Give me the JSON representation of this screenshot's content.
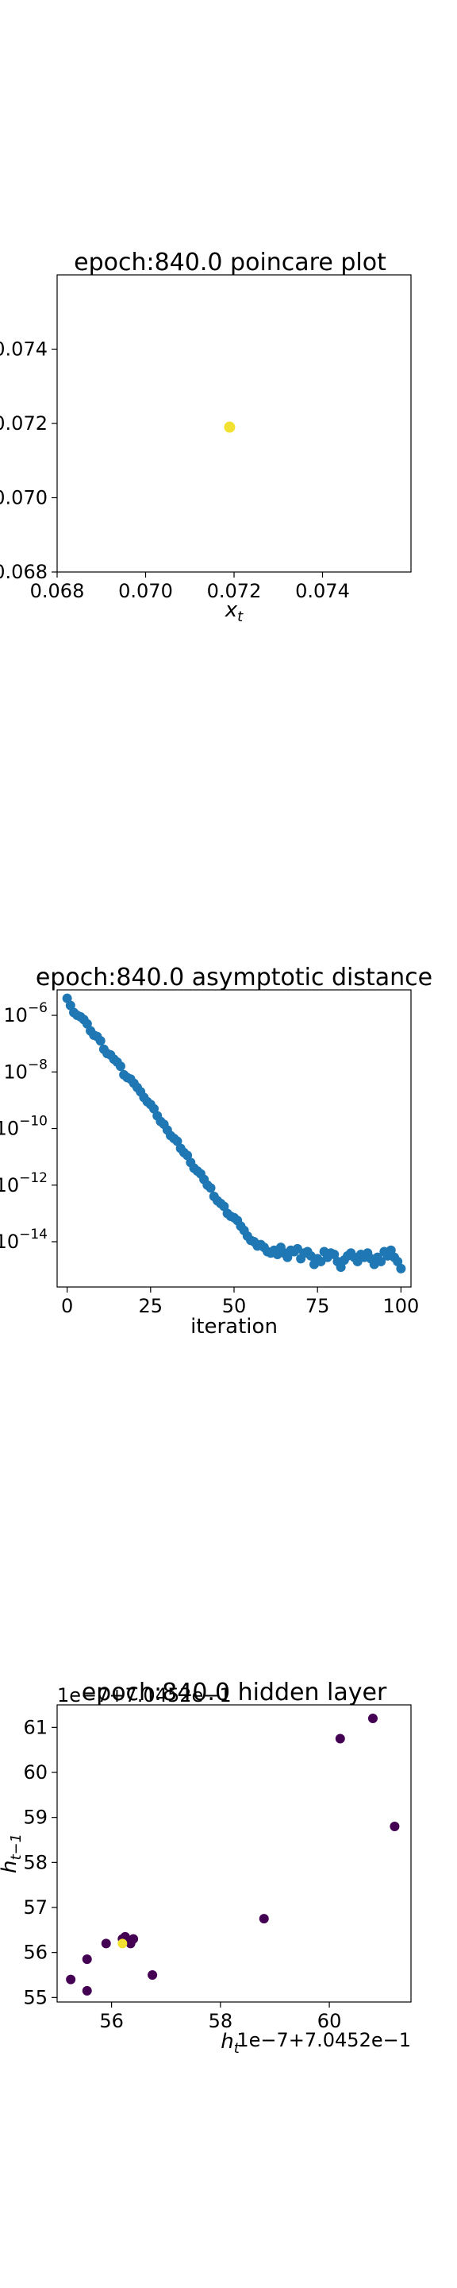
{
  "chart_data": [
    {
      "type": "scatter",
      "title": "epoch:840.0 poincare plot",
      "xlabel": "x_t",
      "ylabel": "",
      "xlim": [
        0.068,
        0.076
      ],
      "ylim": [
        0.068,
        0.076
      ],
      "xticks": [
        "0.068",
        "0.070",
        "0.072",
        "0.074"
      ],
      "yticks": [
        "0.068",
        "0.070",
        "0.072",
        "0.074"
      ],
      "tick_values": [
        0.068,
        0.07,
        0.072,
        0.074
      ],
      "points": [
        {
          "x": 0.0719,
          "y": 0.0719,
          "color": "#f2e130"
        }
      ]
    },
    {
      "type": "scatter",
      "title": "epoch:840.0 asymptotic distance",
      "xlabel": "iteration",
      "ylabel": "",
      "yscale": "log",
      "xlim": [
        -3,
        103
      ],
      "ylim_log10": [
        -15.6,
        -5.1
      ],
      "xticks": [
        "0",
        "25",
        "50",
        "75",
        "100"
      ],
      "xtick_values": [
        0,
        25,
        50,
        75,
        100
      ],
      "yticks": [
        {
          "base": "10",
          "exp": "−6",
          "log": -6
        },
        {
          "base": "10",
          "exp": "−8",
          "log": -8
        },
        {
          "base": "10",
          "exp": "−10",
          "log": -10
        },
        {
          "base": "10",
          "exp": "−12",
          "log": -12
        },
        {
          "base": "10",
          "exp": "−14",
          "log": -14
        }
      ],
      "color": "#1f77b4",
      "y_log10": [
        -5.4,
        -5.65,
        -5.9,
        -6.0,
        -6.05,
        -6.15,
        -6.3,
        -6.55,
        -6.7,
        -6.75,
        -6.9,
        -7.2,
        -7.35,
        -7.4,
        -7.55,
        -7.65,
        -7.8,
        -8.1,
        -8.2,
        -8.25,
        -8.4,
        -8.55,
        -8.7,
        -8.9,
        -9.05,
        -9.15,
        -9.3,
        -9.55,
        -9.75,
        -9.85,
        -10.05,
        -10.25,
        -10.35,
        -10.45,
        -10.7,
        -10.85,
        -10.95,
        -11.2,
        -11.4,
        -11.5,
        -11.6,
        -11.8,
        -12.0,
        -12.1,
        -12.4,
        -12.55,
        -12.65,
        -12.75,
        -13.0,
        -13.1,
        -13.15,
        -13.25,
        -13.45,
        -13.6,
        -13.8,
        -13.95,
        -14.0,
        -14.15,
        -14.1,
        -14.2,
        -14.35,
        -14.4,
        -14.3,
        -14.45,
        -14.2,
        -14.4,
        -14.55,
        -14.3,
        -14.35,
        -14.25,
        -14.6,
        -14.4,
        -14.35,
        -14.5,
        -14.8,
        -14.6,
        -14.7,
        -14.35,
        -14.55,
        -14.4,
        -14.45,
        -14.7,
        -14.9,
        -14.65,
        -14.5,
        -14.4,
        -14.55,
        -14.7,
        -14.45,
        -14.55,
        -14.4,
        -14.6,
        -14.8,
        -14.55,
        -14.7,
        -14.35,
        -14.5,
        -14.3,
        -14.55,
        -14.7,
        -14.95
      ]
    },
    {
      "type": "scatter",
      "title": "epoch:840.0 hidden layer",
      "xlabel": "h_t",
      "ylabel": "h_{t-1}",
      "x_offset_label": "1e−7+7.0452e−1",
      "y_offset_label": "1e−7+7.0452e−1",
      "xlim": [
        55.0,
        61.5
      ],
      "ylim": [
        54.9,
        61.5
      ],
      "xticks": [
        "56",
        "58",
        "60"
      ],
      "xtick_values": [
        56,
        58,
        60
      ],
      "yticks": [
        "55",
        "56",
        "57",
        "58",
        "59",
        "60",
        "61"
      ],
      "ytick_values": [
        55,
        56,
        57,
        58,
        59,
        60,
        61
      ],
      "points": [
        {
          "x": 55.25,
          "y": 55.4,
          "color": "#440154"
        },
        {
          "x": 55.55,
          "y": 55.15,
          "color": "#440154"
        },
        {
          "x": 55.55,
          "y": 55.85,
          "color": "#440154"
        },
        {
          "x": 55.9,
          "y": 56.2,
          "color": "#440154"
        },
        {
          "x": 56.25,
          "y": 56.35,
          "color": "#440154"
        },
        {
          "x": 56.4,
          "y": 56.3,
          "color": "#440154"
        },
        {
          "x": 56.35,
          "y": 56.2,
          "color": "#440154"
        },
        {
          "x": 56.2,
          "y": 56.3,
          "color": "#440154"
        },
        {
          "x": 56.75,
          "y": 55.5,
          "color": "#440154"
        },
        {
          "x": 58.8,
          "y": 56.75,
          "color": "#440154"
        },
        {
          "x": 60.2,
          "y": 60.75,
          "color": "#440154"
        },
        {
          "x": 60.8,
          "y": 61.2,
          "color": "#440154"
        },
        {
          "x": 61.2,
          "y": 58.8,
          "color": "#440154"
        },
        {
          "x": 56.2,
          "y": 56.2,
          "color": "#f2e130"
        }
      ]
    }
  ]
}
